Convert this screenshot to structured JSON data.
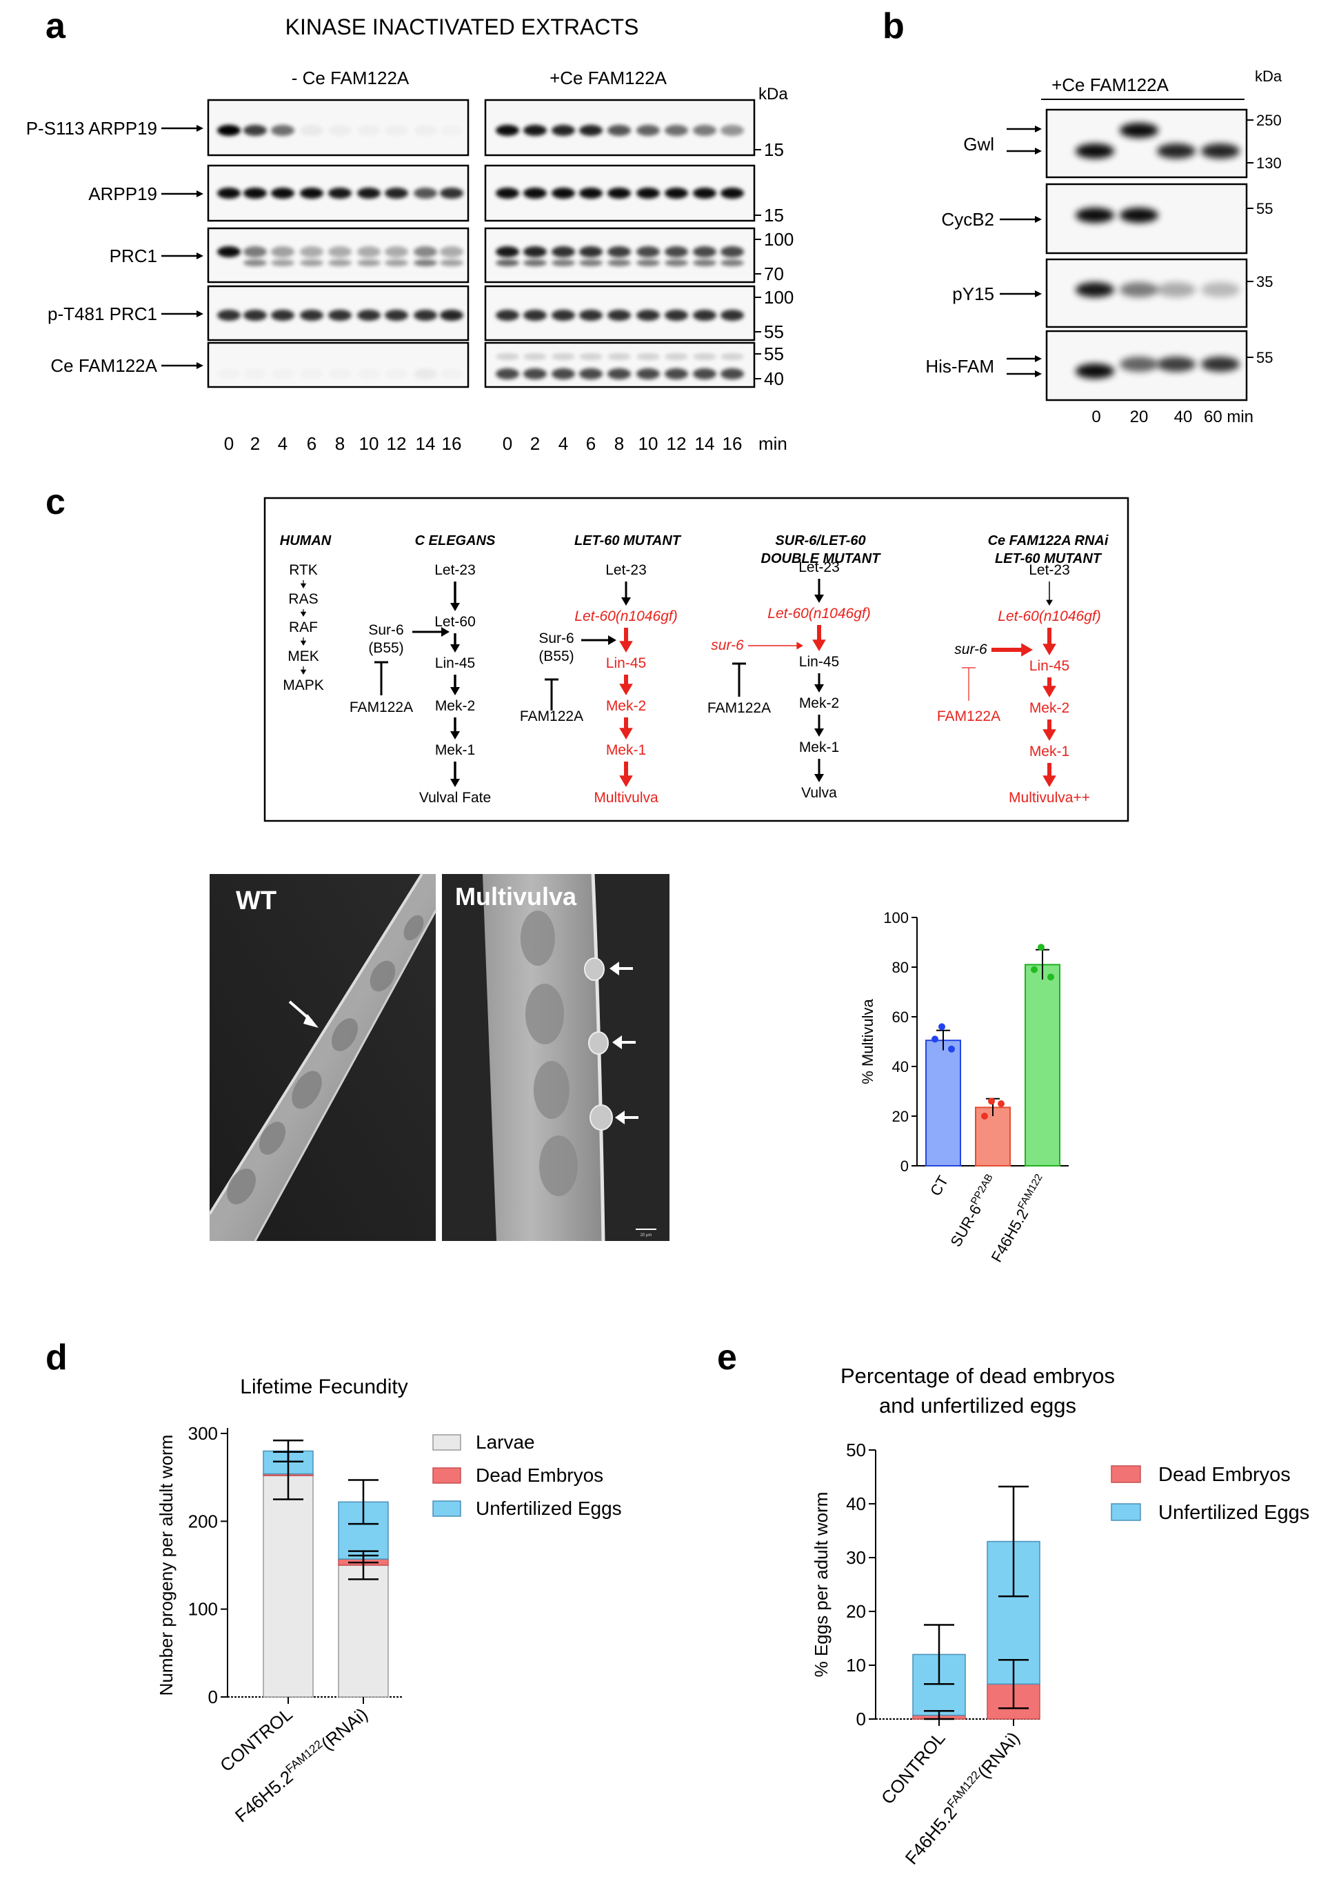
{
  "colors": {
    "red": "#e8221c",
    "blue_bar": "#8eaafa",
    "red_bar": "#f5907e",
    "green_bar": "#80e482",
    "blue_dot": "#2244ee",
    "red_dot": "#ee3322",
    "green_dot": "#22bb22",
    "larvae": "#e9e9e9",
    "dead": "#f27373",
    "unfert": "#7dd0f2"
  },
  "panel_a": {
    "letter": "a",
    "title": "KINASE INACTIVATED EXTRACTS",
    "left_header": "- Ce FAM122A",
    "right_header": "+Ce FAM122A",
    "kda": "kDa",
    "rows": [
      {
        "label": "P-S113 ARPP19",
        "markers": [
          "15"
        ]
      },
      {
        "label": "ARPP19",
        "markers": [
          "15"
        ]
      },
      {
        "label": "PRC1",
        "markers": [
          "100",
          "70"
        ]
      },
      {
        "label": "p-T481 PRC1",
        "markers": [
          "100",
          "55"
        ]
      },
      {
        "label": "Ce FAM122A",
        "markers": [
          "55",
          "40"
        ]
      }
    ],
    "timepoints": [
      "0",
      "2",
      "4",
      "6",
      "8",
      "10",
      "12",
      "14",
      "16"
    ],
    "unit": "min"
  },
  "panel_b": {
    "letter": "b",
    "header": "+Ce FAM122A",
    "kda": "kDa",
    "rows": [
      {
        "label": "Gwl",
        "markers": [
          "250",
          "130"
        ]
      },
      {
        "label": "CycB2",
        "markers": [
          "55"
        ]
      },
      {
        "label": "pY15",
        "markers": [
          "35"
        ]
      },
      {
        "label": "His-FAM",
        "markers": [
          "55"
        ]
      }
    ],
    "timepoints": [
      "0",
      "20",
      "40",
      "60 min"
    ]
  },
  "panel_c": {
    "letter": "c",
    "columns": [
      {
        "title": [
          "HUMAN"
        ],
        "nodes": [
          "RTK",
          "RAS",
          "RAF",
          "MEK",
          "MAPK"
        ]
      },
      {
        "title": [
          "C ELEGANS"
        ],
        "nodes": [
          "Let-23",
          "Let-60",
          "Lin-45",
          "Mek-2",
          "Mek-1",
          "Vulval Fate"
        ],
        "reg": [
          "Sur-6",
          "(B55)",
          "FAM122A"
        ]
      },
      {
        "title": [
          "LET-60 MUTANT"
        ],
        "nodes": [
          "Let-23",
          "Let-60(n1046gf)",
          "Lin-45",
          "Mek-2",
          "Mek-1",
          "Multivulva"
        ],
        "reg": [
          "Sur-6",
          "(B55)",
          "FAM122A"
        ]
      },
      {
        "title": [
          "SUR-6/LET-60",
          "DOUBLE MUTANT"
        ],
        "nodes": [
          "Let-23",
          "Let-60(n1046gf)",
          "Lin-45",
          "Mek-2",
          "Mek-1",
          "Vulva"
        ],
        "reg": [
          "sur-6",
          "FAM122A"
        ]
      },
      {
        "title": [
          "Ce FAM122A RNAi",
          "LET-60 MUTANT"
        ],
        "nodes": [
          "Let-23",
          "Let-60(n1046gf)",
          "Lin-45",
          "Mek-2",
          "Mek-1",
          "Multivulva++"
        ],
        "reg": [
          "sur-6",
          "FAM122A"
        ]
      }
    ],
    "micrographs": {
      "left": "WT",
      "right": "Multivulva",
      "scalebar": "20 µm"
    }
  },
  "chart_data": [
    {
      "type": "bar",
      "panel": "c",
      "title": "",
      "ylabel": "% Multivulva",
      "ylim": [
        0,
        100
      ],
      "yticks": [
        "0",
        "20",
        "40",
        "60",
        "80",
        "100"
      ],
      "categories": [
        "CT",
        "SUR-6",
        "F46H5.2"
      ],
      "category_superscripts": [
        "",
        "PP2AB",
        "FAM122"
      ],
      "values": [
        50.5,
        23.5,
        81
      ],
      "errors": [
        4,
        3.5,
        6
      ],
      "points": [
        [
          56,
          51,
          47
        ],
        [
          26,
          20,
          25
        ],
        [
          88,
          79,
          76
        ]
      ]
    },
    {
      "type": "bar",
      "stacked": true,
      "panel": "d",
      "title": "Lifetime Fecundity",
      "ylabel": "Number progeny per aldult worm",
      "ylim": [
        0,
        300
      ],
      "yticks": [
        "0",
        "100",
        "200",
        "300"
      ],
      "categories": [
        "CONTROL",
        "F46H5.2"
      ],
      "category_suffixes": [
        "",
        "(RNAi)"
      ],
      "category_superscripts": [
        "",
        "FAM122"
      ],
      "series": [
        {
          "name": "Larvae",
          "values": [
            252,
            150
          ],
          "errors": [
            27,
            16
          ]
        },
        {
          "name": "Dead Embryos",
          "values": [
            2,
            7
          ],
          "errors": [
            0,
            4
          ]
        },
        {
          "name": "Unfertilized Eggs",
          "values": [
            26,
            65
          ],
          "errors": [
            12,
            25
          ]
        }
      ],
      "legend": "right"
    },
    {
      "type": "bar",
      "stacked": true,
      "panel": "e",
      "title": "Percentage of dead embryos and unfertilized eggs",
      "title_lines": [
        "Percentage of dead embryos",
        "and unfertilized eggs"
      ],
      "ylabel": "% Eggs per adult worm",
      "ylim": [
        0,
        50
      ],
      "yticks": [
        "0",
        "10",
        "20",
        "30",
        "40",
        "50"
      ],
      "categories": [
        "CONTROL",
        "F46H5.2"
      ],
      "category_suffixes": [
        "",
        "(RNAi)"
      ],
      "category_superscripts": [
        "",
        "FAM122"
      ],
      "series": [
        {
          "name": "Dead Embryos",
          "values": [
            0.7,
            6.5
          ],
          "errors": [
            0.8,
            4.5
          ]
        },
        {
          "name": "Unfertilized Eggs",
          "values": [
            11.3,
            26.5
          ],
          "errors": [
            5.5,
            10.2
          ]
        }
      ],
      "legend": "right"
    }
  ]
}
